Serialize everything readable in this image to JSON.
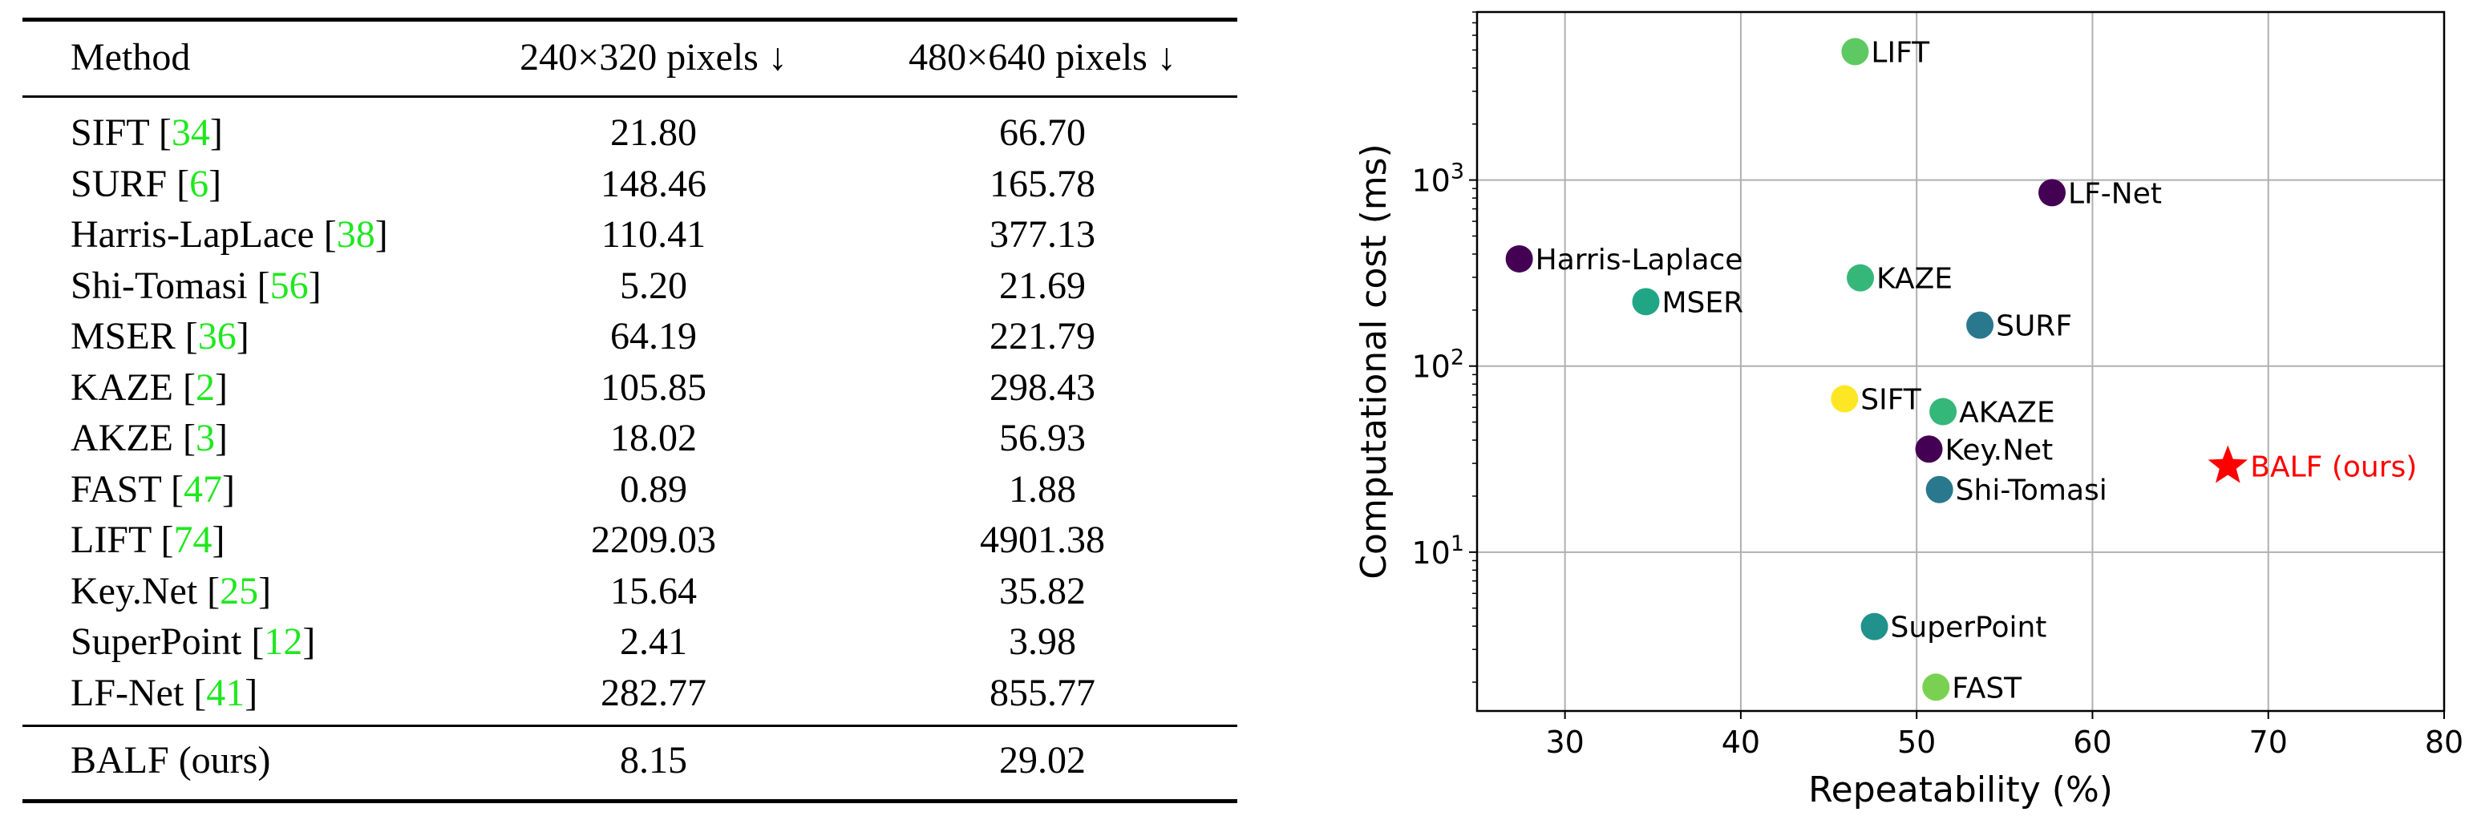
{
  "table": {
    "headers": [
      "Method",
      "240×320 pixels ↓",
      "480×640 pixels ↓"
    ],
    "rows": [
      {
        "method": "SIFT",
        "ref": "34",
        "v1": "21.80",
        "v2": "66.70"
      },
      {
        "method": "SURF",
        "ref": "6",
        "v1": "148.46",
        "v2": "165.78"
      },
      {
        "method": "Harris-LapLace",
        "ref": "38",
        "v1": "110.41",
        "v2": "377.13"
      },
      {
        "method": "Shi-Tomasi",
        "ref": "56",
        "v1": "5.20",
        "v2": "21.69"
      },
      {
        "method": "MSER",
        "ref": "36",
        "v1": "64.19",
        "v2": "221.79"
      },
      {
        "method": "KAZE",
        "ref": "2",
        "v1": "105.85",
        "v2": "298.43"
      },
      {
        "method": "AKZE",
        "ref": "3",
        "v1": "18.02",
        "v2": "56.93"
      },
      {
        "method": "FAST",
        "ref": "47",
        "v1": "0.89",
        "v2": "1.88"
      },
      {
        "method": "LIFT",
        "ref": "74",
        "v1": "2209.03",
        "v2": "4901.38"
      },
      {
        "method": "Key.Net",
        "ref": "25",
        "v1": "15.64",
        "v2": "35.82"
      },
      {
        "method": "SuperPoint",
        "ref": "12",
        "v1": "2.41",
        "v2": "3.98"
      },
      {
        "method": "LF-Net",
        "ref": "41",
        "v1": "282.77",
        "v2": "855.77"
      }
    ],
    "footer_row": {
      "method": "BALF (ours)",
      "v1": "8.15",
      "v2": "29.02"
    }
  },
  "chart_data": {
    "type": "scatter",
    "xlabel": "Repeatability (%)",
    "ylabel": "Computational cost (ms)",
    "xlim": [
      25,
      80
    ],
    "ylim": [
      1.4,
      8000
    ],
    "yscale": "log",
    "xticks": [
      30,
      40,
      50,
      60,
      70,
      80
    ],
    "yticks": [
      {
        "value": 10,
        "base": "10",
        "exp": "1"
      },
      {
        "value": 100,
        "base": "10",
        "exp": "2"
      },
      {
        "value": 1000,
        "base": "10",
        "exp": "3"
      }
    ],
    "grid": true,
    "points": [
      {
        "label": "LIFT",
        "x": 46.5,
        "y": 4900,
        "color": "#5ec962",
        "marker": "circle"
      },
      {
        "label": "LF-Net",
        "x": 57.7,
        "y": 855,
        "color": "#440154",
        "marker": "circle"
      },
      {
        "label": "Harris-Laplace",
        "x": 27.4,
        "y": 377,
        "color": "#440154",
        "marker": "circle"
      },
      {
        "label": "KAZE",
        "x": 46.8,
        "y": 298,
        "color": "#35b779",
        "marker": "circle"
      },
      {
        "label": "MSER",
        "x": 34.6,
        "y": 222,
        "color": "#21a685",
        "marker": "circle"
      },
      {
        "label": "SURF",
        "x": 53.6,
        "y": 166,
        "color": "#2a788e",
        "marker": "circle"
      },
      {
        "label": "SIFT",
        "x": 45.9,
        "y": 66.7,
        "color": "#fde725",
        "marker": "circle"
      },
      {
        "label": "AKAZE",
        "x": 51.5,
        "y": 56.9,
        "color": "#35b779",
        "marker": "circle"
      },
      {
        "label": "Key.Net",
        "x": 50.7,
        "y": 35.8,
        "color": "#440154",
        "marker": "circle"
      },
      {
        "label": "Shi-Tomasi",
        "x": 51.3,
        "y": 21.7,
        "color": "#2a788e",
        "marker": "circle"
      },
      {
        "label": "SuperPoint",
        "x": 47.6,
        "y": 3.98,
        "color": "#21918c",
        "marker": "circle"
      },
      {
        "label": "FAST",
        "x": 51.1,
        "y": 1.88,
        "color": "#7ad151",
        "marker": "circle"
      },
      {
        "label": "BALF (ours)",
        "x": 67.7,
        "y": 29.0,
        "color": "#ff0000",
        "marker": "star"
      }
    ]
  }
}
